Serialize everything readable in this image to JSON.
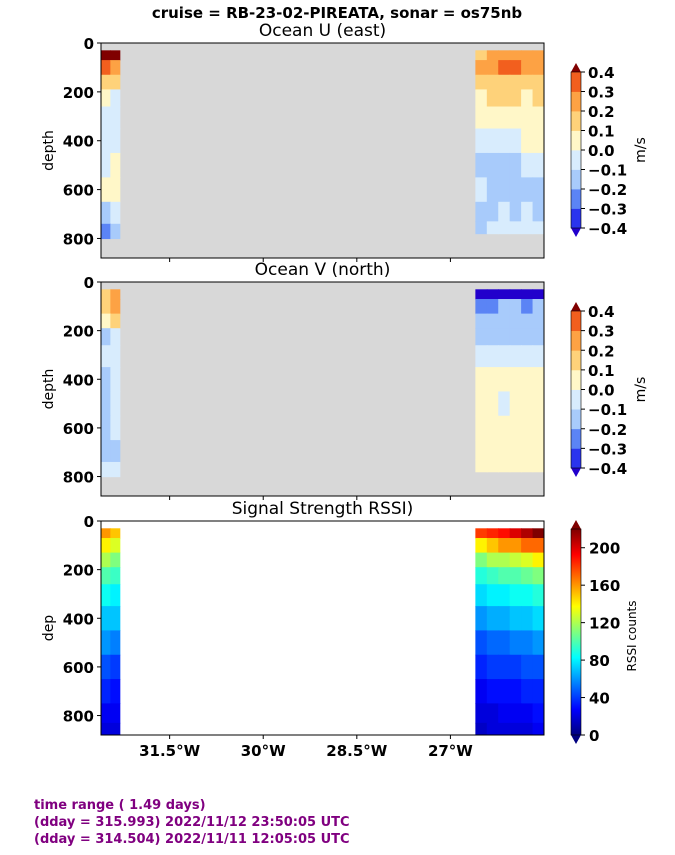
{
  "suptitle": "cruise = RB-23-02-PIREATA,  sonar = os75nb",
  "time_range": {
    "line1": "time range ( 1.49 days)",
    "line2": "(dday = 315.993) 2022/11/12 23:50:05 UTC",
    "line3": "(dday = 314.504) 2022/11/11 12:05:05 UTC"
  },
  "colors": {
    "nodata_gray": "#d8d8d8",
    "footer_purple": "#800080",
    "diverging": [
      "#2200cc",
      "#2a34ee",
      "#5b84f5",
      "#a8cbfb",
      "#d8ecfd",
      "#fff7c8",
      "#fed27a",
      "#fda244",
      "#f25f1e",
      "#d1200e",
      "#800000"
    ],
    "jet": [
      "#00007f",
      "#0000ff",
      "#007fff",
      "#00ffff",
      "#7fff7f",
      "#ffff00",
      "#ff7f00",
      "#ff0000",
      "#7f0000"
    ]
  },
  "chart_data": [
    {
      "id": "u",
      "type": "heatmap",
      "title": "Ocean U (east)",
      "ylabel": "depth",
      "colorbar_label": "m/s",
      "colorbar_ticks": [
        "0.4",
        "0.3",
        "0.2",
        "0.1",
        "0.0",
        "−0.1",
        "−0.2",
        "−0.3",
        "−0.4"
      ],
      "colorbar_levels": [
        -0.4,
        -0.3,
        -0.2,
        -0.1,
        0.0,
        0.1,
        0.2,
        0.3,
        0.4
      ],
      "clim": [
        -0.4,
        0.4
      ],
      "y_ticks": [
        "0",
        "200",
        "400",
        "600",
        "800"
      ],
      "y_tick_values": [
        0,
        200,
        400,
        600,
        800
      ],
      "ylim": [
        880,
        0
      ],
      "x_tick_values": [
        -31.5,
        -30,
        -28.5,
        -27
      ],
      "xlim": [
        -32.6,
        -25.5
      ],
      "gaps_shown_as": "gray",
      "segments": [
        {
          "x_range": [
            -32.6,
            -32.3
          ],
          "depths": [
            40,
            100,
            160,
            220,
            300,
            400,
            500,
            600,
            700,
            780
          ],
          "values": [
            [
              0.45,
              0.45
            ],
            [
              0.35,
              0.3
            ],
            [
              0.15,
              0.1
            ],
            [
              0.05,
              -0.05
            ],
            [
              -0.05,
              -0.05
            ],
            [
              -0.05,
              -0.05
            ],
            [
              -0.05,
              0.0
            ],
            [
              0.05,
              0.05
            ],
            [
              -0.15,
              -0.05
            ],
            [
              -0.25,
              -0.2
            ]
          ]
        },
        {
          "x_range": [
            -26.6,
            -25.5
          ],
          "depths": [
            40,
            100,
            160,
            220,
            300,
            400,
            500,
            600,
            700,
            760
          ],
          "values": [
            [
              0.15,
              0.25,
              0.25,
              0.2,
              0.25,
              0.2
            ],
            [
              0.25,
              0.3,
              0.35,
              0.35,
              0.3,
              0.25
            ],
            [
              0.15,
              0.15,
              0.15,
              0.15,
              0.15,
              0.15
            ],
            [
              0.05,
              0.15,
              0.1,
              0.1,
              0.05,
              0.1
            ],
            [
              0.05,
              0.05,
              0.05,
              0.05,
              0.05,
              0.05
            ],
            [
              -0.05,
              -0.05,
              -0.05,
              -0.05,
              0.05,
              0.05
            ],
            [
              -0.15,
              -0.15,
              -0.15,
              -0.15,
              -0.05,
              -0.05
            ],
            [
              -0.05,
              -0.15,
              -0.15,
              -0.15,
              -0.15,
              -0.15
            ],
            [
              -0.15,
              -0.15,
              -0.05,
              -0.15,
              -0.05,
              -0.15
            ],
            [
              -0.15,
              -0.05,
              -0.05,
              -0.05,
              -0.05,
              -0.05
            ]
          ]
        }
      ]
    },
    {
      "id": "v",
      "type": "heatmap",
      "title": "Ocean V (north)",
      "ylabel": "depth",
      "colorbar_label": "m/s",
      "colorbar_ticks": [
        "0.4",
        "0.3",
        "0.2",
        "0.1",
        "0.0",
        "−0.1",
        "−0.2",
        "−0.3",
        "−0.4"
      ],
      "colorbar_levels": [
        -0.4,
        -0.3,
        -0.2,
        -0.1,
        0.0,
        0.1,
        0.2,
        0.3,
        0.4
      ],
      "clim": [
        -0.4,
        0.4
      ],
      "y_ticks": [
        "0",
        "200",
        "400",
        "600",
        "800"
      ],
      "y_tick_values": [
        0,
        200,
        400,
        600,
        800
      ],
      "ylim": [
        880,
        0
      ],
      "x_tick_values": [
        -31.5,
        -30,
        -28.5,
        -27
      ],
      "xlim": [
        -32.6,
        -25.5
      ],
      "gaps_shown_as": "gray",
      "segments": [
        {
          "x_range": [
            -32.6,
            -32.3
          ],
          "depths": [
            40,
            100,
            160,
            220,
            300,
            400,
            500,
            600,
            700,
            780
          ],
          "values": [
            [
              0.15,
              0.25
            ],
            [
              0.15,
              0.2
            ],
            [
              0.05,
              0.1
            ],
            [
              -0.15,
              -0.05
            ],
            [
              -0.05,
              -0.05
            ],
            [
              -0.15,
              -0.05
            ],
            [
              -0.15,
              -0.05
            ],
            [
              -0.15,
              -0.05
            ],
            [
              -0.15,
              -0.15
            ],
            [
              -0.05,
              -0.05
            ]
          ]
        },
        {
          "x_range": [
            -26.6,
            -25.5
          ],
          "depths": [
            40,
            100,
            160,
            220,
            300,
            400,
            500,
            600,
            700,
            760
          ],
          "values": [
            [
              -0.45,
              -0.45,
              -0.45,
              -0.45,
              -0.45,
              -0.45
            ],
            [
              -0.25,
              -0.25,
              -0.15,
              -0.2,
              -0.25,
              -0.15
            ],
            [
              -0.15,
              -0.15,
              -0.15,
              -0.15,
              -0.15,
              -0.15
            ],
            [
              -0.15,
              -0.15,
              -0.15,
              -0.15,
              -0.15,
              -0.15
            ],
            [
              -0.05,
              -0.05,
              -0.05,
              -0.05,
              -0.05,
              -0.05
            ],
            [
              0.05,
              0.05,
              0.05,
              0.05,
              0.05,
              0.05
            ],
            [
              0.05,
              0.05,
              -0.05,
              0.05,
              0.05,
              0.05
            ],
            [
              0.05,
              0.05,
              0.05,
              0.05,
              0.05,
              0.05
            ],
            [
              0.05,
              0.05,
              0.05,
              0.05,
              0.05,
              0.05
            ],
            [
              0.05,
              0.05,
              0.05,
              0.05,
              0.05,
              0.05
            ]
          ]
        }
      ]
    },
    {
      "id": "rssi",
      "type": "heatmap",
      "title": "Signal Strength RSSI)",
      "ylabel": "dep",
      "colorbar_label": "RSSI counts",
      "colorbar_ticks": [
        "200",
        "160",
        "120",
        "80",
        "40",
        "0"
      ],
      "colorbar_tick_values": [
        200,
        160,
        120,
        80,
        40,
        0
      ],
      "clim": [
        0,
        220
      ],
      "y_ticks": [
        "0",
        "200",
        "400",
        "600",
        "800"
      ],
      "y_tick_values": [
        0,
        200,
        400,
        600,
        800
      ],
      "ylim": [
        880,
        0
      ],
      "x_ticks": [
        "31.5°W",
        "30°W",
        "28.5°W",
        "27°W"
      ],
      "x_tick_values": [
        -31.5,
        -30,
        -28.5,
        -27
      ],
      "xlim": [
        -32.6,
        -25.5
      ],
      "gaps_shown_as": "white",
      "segments": [
        {
          "x_range": [
            -32.6,
            -32.3
          ],
          "depths": [
            40,
            100,
            160,
            220,
            300,
            400,
            500,
            600,
            700,
            800,
            860
          ],
          "values": [
            [
              160,
              150
            ],
            [
              140,
              130
            ],
            [
              120,
              110
            ],
            [
              100,
              95
            ],
            [
              85,
              80
            ],
            [
              70,
              70
            ],
            [
              60,
              55
            ],
            [
              45,
              40
            ],
            [
              35,
              30
            ],
            [
              25,
              25
            ],
            [
              20,
              20
            ]
          ]
        },
        {
          "x_range": [
            -26.6,
            -25.5
          ],
          "depths": [
            40,
            100,
            160,
            220,
            300,
            400,
            500,
            600,
            700,
            800,
            860
          ],
          "values": [
            [
              180,
              185,
              190,
              200,
              210,
              220
            ],
            [
              140,
              150,
              160,
              160,
              170,
              170
            ],
            [
              110,
              120,
              120,
              125,
              130,
              140
            ],
            [
              90,
              95,
              100,
              100,
              105,
              110
            ],
            [
              75,
              80,
              80,
              85,
              85,
              90
            ],
            [
              60,
              65,
              65,
              70,
              70,
              75
            ],
            [
              45,
              50,
              50,
              55,
              55,
              60
            ],
            [
              35,
              40,
              40,
              40,
              45,
              45
            ],
            [
              25,
              30,
              30,
              30,
              35,
              35
            ],
            [
              20,
              20,
              25,
              25,
              25,
              30
            ],
            [
              15,
              20,
              20,
              20,
              20,
              25
            ]
          ]
        }
      ]
    }
  ]
}
